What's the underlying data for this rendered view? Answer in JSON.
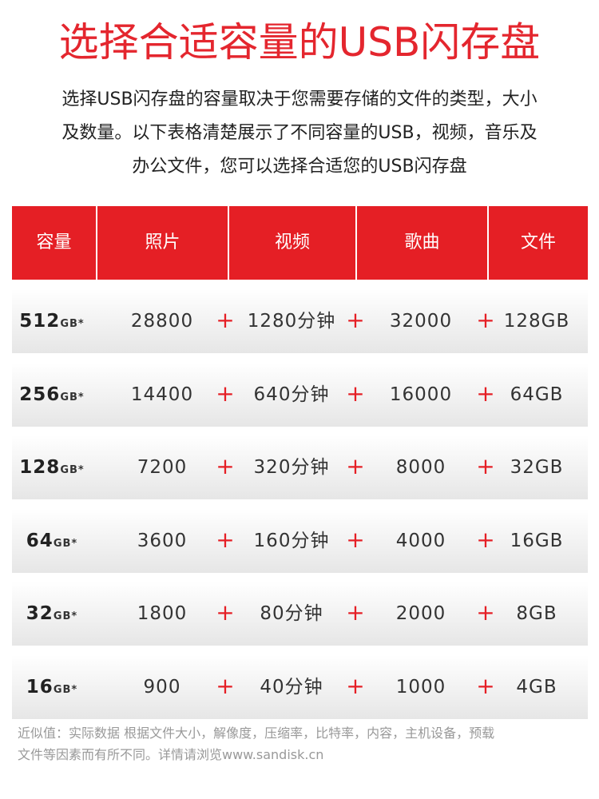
{
  "header": {
    "title": "选择合适容量的USB闪存盘",
    "intro": [
      "选择USB闪存盘的容量取决于您需要存储的文件的类型，大小",
      "及数量。以下表格清楚展示了不同容量的USB，视频，音乐及",
      "办公文件，您可以选择合适您的USB闪存盘"
    ]
  },
  "table": {
    "columns": [
      "容量",
      "照片",
      "视频",
      "歌曲",
      "文件"
    ],
    "separator": "+",
    "rows": [
      {
        "capacity": "512",
        "unit": "GB*",
        "cells": [
          "28800",
          "1280分钟",
          "32000",
          "128GB"
        ]
      },
      {
        "capacity": "256",
        "unit": "GB*",
        "cells": [
          "14400",
          "640分钟",
          "16000",
          "64GB"
        ]
      },
      {
        "capacity": "128",
        "unit": "GB*",
        "cells": [
          "7200",
          "320分钟",
          "8000",
          "32GB"
        ]
      },
      {
        "capacity": "64",
        "unit": "GB*",
        "cells": [
          "3600",
          "160分钟",
          "4000",
          "16GB"
        ]
      },
      {
        "capacity": "32",
        "unit": "GB*",
        "cells": [
          "1800",
          "80分钟",
          "2000",
          "8GB"
        ]
      },
      {
        "capacity": "16",
        "unit": "GB*",
        "cells": [
          "900",
          "40分钟",
          "1000",
          "4GB"
        ]
      }
    ]
  },
  "footnote": [
    "近似值：实际数据 根据文件大小，解像度，压缩率，比特率，内容，主机设备，预载",
    "文件等因素而有所不同。详情请浏览www.sandisk.cn"
  ]
}
